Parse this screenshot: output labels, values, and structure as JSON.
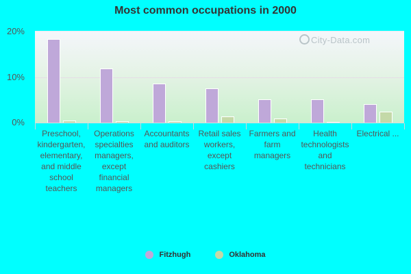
{
  "chart_data": {
    "type": "bar",
    "title": "Most common occupations in 2000",
    "xlabel": "",
    "ylabel": "",
    "ylim": [
      0,
      20
    ],
    "yticks": [
      "0%",
      "10%",
      "20%"
    ],
    "grid": true,
    "legend_position": "bottom",
    "categories": [
      "Preschool, kindergarten, elementary, and middle school teachers",
      "Operations specialties managers, except financial managers",
      "Accountants and auditors",
      "Retail sales workers, except cashiers",
      "Farmers and farm managers",
      "Health technologists and technicians",
      "Electrical ..."
    ],
    "series": [
      {
        "name": "Fitzhugh",
        "color": "#bfa8d9",
        "values": [
          18.4,
          11.9,
          8.6,
          7.6,
          5.3,
          5.3,
          4.2
        ]
      },
      {
        "name": "Oklahoma",
        "color": "#c4d9a8",
        "values": [
          0.6,
          0.5,
          0.4,
          1.5,
          1.0,
          0.3,
          2.5
        ]
      }
    ],
    "watermark": "City-Data.com"
  }
}
